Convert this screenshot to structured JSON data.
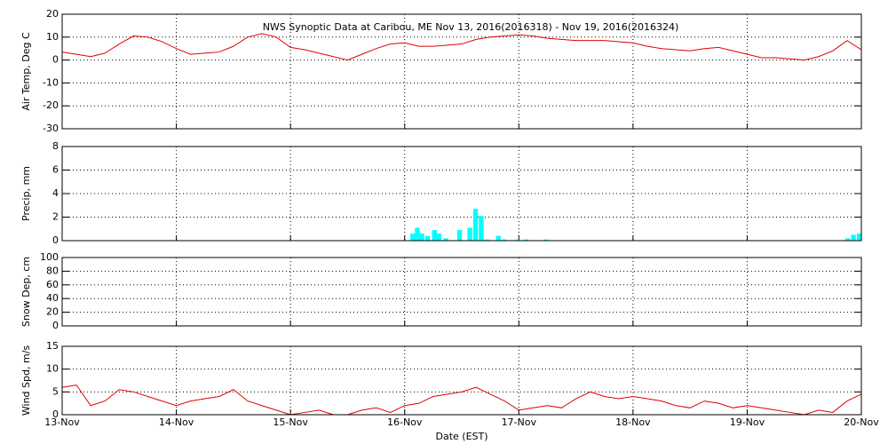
{
  "chart_data": [
    {
      "type": "line",
      "title": "NWS Synoptic Data at Caribou, ME   Nov 13, 2016(2016318) - Nov 19, 2016(2016324)",
      "ylabel": "Air Temp, Deg C",
      "color": "#e00000",
      "x": [
        0,
        0.125,
        0.25,
        0.375,
        0.5,
        0.625,
        0.75,
        0.875,
        1,
        1.125,
        1.25,
        1.375,
        1.5,
        1.625,
        1.75,
        1.875,
        2,
        2.125,
        2.25,
        2.375,
        2.5,
        2.625,
        2.75,
        2.875,
        3,
        3.125,
        3.25,
        3.375,
        3.5,
        3.625,
        3.75,
        3.875,
        4,
        4.125,
        4.25,
        4.375,
        4.5,
        4.625,
        4.75,
        4.875,
        5,
        5.125,
        5.25,
        5.375,
        5.5,
        5.625,
        5.75,
        5.875,
        6,
        6.125,
        6.25,
        6.375,
        6.5,
        6.625,
        6.75,
        6.875,
        7
      ],
      "values": [
        3.5,
        2.5,
        1.5,
        3,
        7,
        10.5,
        10,
        8,
        5,
        2.5,
        3,
        3.5,
        6,
        10,
        11.5,
        10,
        5.5,
        4.5,
        3,
        1.5,
        0,
        2.5,
        5,
        7,
        7.5,
        6,
        6,
        6.5,
        7,
        9,
        10,
        10.5,
        11,
        10.5,
        9.5,
        9,
        8.5,
        8.5,
        8.5,
        8,
        7.5,
        6,
        5,
        4.5,
        4,
        5,
        5.5,
        4,
        2.5,
        1,
        1,
        0.5,
        0,
        1.5,
        4,
        8.5,
        4.5
      ],
      "xlim": [
        0,
        7
      ],
      "xticks": [
        0,
        1,
        2,
        3,
        4,
        5,
        6,
        7
      ],
      "ylim": [
        -30,
        20
      ],
      "yticks": [
        -30,
        -20,
        -10,
        0,
        10,
        20
      ],
      "grid": true
    },
    {
      "type": "bar",
      "ylabel": "Precip, mm",
      "color": "#00ffff",
      "x": [
        3.05,
        3.09,
        3.13,
        3.18,
        3.24,
        3.28,
        3.34,
        3.46,
        3.55,
        3.6,
        3.65,
        3.7,
        3.8,
        3.85,
        3.97,
        4.04,
        4.22,
        6.86,
        6.91,
        6.96
      ],
      "values": [
        0.6,
        1.1,
        0.6,
        0.4,
        0.9,
        0.6,
        0.2,
        0.9,
        1.1,
        2.7,
        2.1,
        0.1,
        0.4,
        0.1,
        0.1,
        0.1,
        0.1,
        0.2,
        0.5,
        0.6
      ],
      "xlim": [
        0,
        7
      ],
      "xticks": [
        0,
        1,
        2,
        3,
        4,
        5,
        6,
        7
      ],
      "ylim": [
        0,
        8
      ],
      "yticks": [
        0,
        2,
        4,
        6,
        8
      ],
      "grid": true
    },
    {
      "type": "line",
      "ylabel": "Snow Dep, cm",
      "color": "#e00000",
      "x": [],
      "values": [],
      "xlim": [
        0,
        7
      ],
      "xticks": [
        0,
        1,
        2,
        3,
        4,
        5,
        6,
        7
      ],
      "ylim": [
        0,
        100
      ],
      "yticks": [
        0,
        20,
        40,
        60,
        80,
        100
      ],
      "grid": true
    },
    {
      "type": "line",
      "ylabel": "Wind Spd, m/s",
      "xlabel": "Date (EST)",
      "color": "#e00000",
      "x": [
        0,
        0.125,
        0.25,
        0.375,
        0.5,
        0.625,
        0.75,
        0.875,
        1,
        1.125,
        1.25,
        1.375,
        1.5,
        1.625,
        1.75,
        1.875,
        2,
        2.125,
        2.25,
        2.375,
        2.5,
        2.625,
        2.75,
        2.875,
        3,
        3.125,
        3.25,
        3.375,
        3.5,
        3.625,
        3.75,
        3.875,
        4,
        4.125,
        4.25,
        4.375,
        4.5,
        4.625,
        4.75,
        4.875,
        5,
        5.125,
        5.25,
        5.375,
        5.5,
        5.625,
        5.75,
        5.875,
        6,
        6.125,
        6.25,
        6.375,
        6.5,
        6.625,
        6.75,
        6.875,
        7
      ],
      "values": [
        6,
        6.5,
        2,
        3,
        5.5,
        5,
        4,
        3,
        2,
        3,
        3.5,
        4,
        5.5,
        3,
        2,
        1,
        0,
        0.5,
        1,
        0,
        0,
        1,
        1.5,
        0.5,
        2,
        2.5,
        4,
        4.5,
        5,
        6,
        4.5,
        3,
        1,
        1.5,
        2,
        1.5,
        3.5,
        5,
        4,
        3.5,
        4,
        3.5,
        3,
        2,
        1.5,
        3,
        2.5,
        1.5,
        2,
        1.5,
        1,
        0.5,
        0,
        1,
        0.5,
        3,
        4.5
      ],
      "xlim": [
        0,
        7
      ],
      "xticks": [
        {
          "value": 0,
          "label": "13-Nov"
        },
        {
          "value": 1,
          "label": "14-Nov"
        },
        {
          "value": 2,
          "label": "15-Nov"
        },
        {
          "value": 3,
          "label": "16-Nov"
        },
        {
          "value": 4,
          "label": "17-Nov"
        },
        {
          "value": 5,
          "label": "18-Nov"
        },
        {
          "value": 6,
          "label": "19-Nov"
        },
        {
          "value": 7,
          "label": "20-Nov"
        }
      ],
      "ylim": [
        0,
        15
      ],
      "yticks": [
        0,
        5,
        10,
        15
      ],
      "grid": true
    }
  ]
}
